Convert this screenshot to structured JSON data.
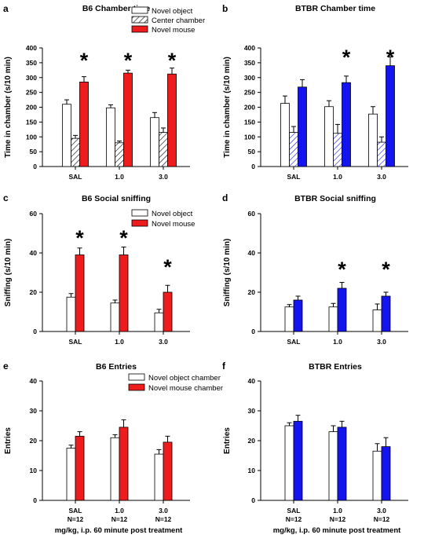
{
  "colors": {
    "novel_object": "#ffffff",
    "center_chamber": "hatched",
    "b6_novel": "#ee1c1c",
    "btbr_novel": "#1414f0",
    "outline": "#000000"
  },
  "chart_data": [
    {
      "panel_label": "a",
      "type": "bar",
      "title": "B6 Chamber time",
      "xlabel": "",
      "ylabel": "Time in chamber (s/10 min)",
      "ylim": [
        0,
        400
      ],
      "yticks": [
        0,
        50,
        100,
        150,
        200,
        250,
        300,
        350,
        400
      ],
      "categories": [
        "SAL",
        "1.0",
        "3.0"
      ],
      "legend": [
        "Novel object",
        "Center chamber",
        "Novel mouse"
      ],
      "series": [
        {
          "name": "Novel object",
          "fill": "white",
          "values": [
            210,
            198,
            165
          ],
          "errors": [
            15,
            10,
            17
          ]
        },
        {
          "name": "Center chamber",
          "fill": "hatch",
          "values": [
            95,
            80,
            115
          ],
          "errors": [
            10,
            6,
            15
          ]
        },
        {
          "name": "Novel mouse",
          "fill": "red",
          "values": [
            285,
            315,
            312
          ],
          "errors": [
            18,
            10,
            20
          ]
        }
      ],
      "stars": [
        "*",
        "*",
        "*"
      ],
      "sublabels": [],
      "caption": ""
    },
    {
      "panel_label": "b",
      "type": "bar",
      "title": "BTBR Chamber time",
      "xlabel": "",
      "ylabel": "Time in chamber (s/10 min)",
      "ylim": [
        0,
        400
      ],
      "yticks": [
        0,
        50,
        100,
        150,
        200,
        250,
        300,
        350,
        400
      ],
      "categories": [
        "SAL",
        "1.0",
        "3.0"
      ],
      "legend": [],
      "series": [
        {
          "name": "Novel object",
          "fill": "white",
          "values": [
            213,
            202,
            177
          ],
          "errors": [
            25,
            20,
            25
          ]
        },
        {
          "name": "Center chamber",
          "fill": "hatch-blue",
          "values": [
            115,
            112,
            82
          ],
          "errors": [
            20,
            30,
            18
          ]
        },
        {
          "name": "Novel mouse",
          "fill": "blue",
          "values": [
            268,
            283,
            340
          ],
          "errors": [
            25,
            22,
            30
          ]
        }
      ],
      "stars": [
        "",
        "*",
        "*"
      ],
      "sublabels": [],
      "caption": ""
    },
    {
      "panel_label": "c",
      "type": "bar",
      "title": "B6 Social sniffing",
      "xlabel": "",
      "ylabel": "Sniffing (s/10 min)",
      "ylim": [
        0,
        60
      ],
      "yticks": [
        0,
        20,
        40,
        60
      ],
      "categories": [
        "SAL",
        "1.0",
        "3.0"
      ],
      "legend": [
        "Novel object",
        "Novel mouse"
      ],
      "series": [
        {
          "name": "Novel object",
          "fill": "white",
          "values": [
            17.5,
            14.5,
            9.5
          ],
          "errors": [
            1.8,
            1.5,
            1.8
          ]
        },
        {
          "name": "Novel mouse",
          "fill": "red",
          "values": [
            39,
            39,
            20
          ],
          "errors": [
            3.5,
            4,
            3.5
          ]
        }
      ],
      "stars": [
        "*",
        "*",
        "*"
      ],
      "sublabels": [],
      "caption": ""
    },
    {
      "panel_label": "d",
      "type": "bar",
      "title": "BTBR Social sniffing",
      "xlabel": "",
      "ylabel": "Sniffing (s/10 min)",
      "ylim": [
        0,
        60
      ],
      "yticks": [
        0,
        20,
        40,
        60
      ],
      "categories": [
        "SAL",
        "1.0",
        "3.0"
      ],
      "legend": [],
      "series": [
        {
          "name": "Novel object",
          "fill": "white",
          "values": [
            12.5,
            12.5,
            11
          ],
          "errors": [
            1.2,
            1.8,
            3
          ]
        },
        {
          "name": "Novel mouse",
          "fill": "blue",
          "values": [
            16,
            22,
            18
          ],
          "errors": [
            2,
            3,
            2
          ]
        }
      ],
      "stars": [
        "",
        "*",
        "*"
      ],
      "sublabels": [],
      "caption": ""
    },
    {
      "panel_label": "e",
      "type": "bar",
      "title": "B6 Entries",
      "xlabel": "",
      "ylabel": "Entries",
      "ylim": [
        0,
        40
      ],
      "yticks": [
        0,
        10,
        20,
        30,
        40
      ],
      "categories": [
        "SAL",
        "1.0",
        "3.0"
      ],
      "legend": [
        "Novel object chamber",
        "Novel mouse chamber"
      ],
      "series": [
        {
          "name": "Novel object chamber",
          "fill": "white",
          "values": [
            17.5,
            21,
            15.5
          ],
          "errors": [
            1,
            1,
            1.5
          ]
        },
        {
          "name": "Novel mouse chamber",
          "fill": "red",
          "values": [
            21.5,
            24.5,
            19.5
          ],
          "errors": [
            1.5,
            2.5,
            2
          ]
        }
      ],
      "stars": [
        "",
        "",
        ""
      ],
      "sublabels": [
        "N=12",
        "N=12",
        "N=12"
      ],
      "caption": "mg/kg, i.p. 60 minute post treatment"
    },
    {
      "panel_label": "f",
      "type": "bar",
      "title": "BTBR Entries",
      "xlabel": "",
      "ylabel": "Entries",
      "ylim": [
        0,
        40
      ],
      "yticks": [
        0,
        10,
        20,
        30,
        40
      ],
      "categories": [
        "SAL",
        "1.0",
        "3.0"
      ],
      "legend": [],
      "series": [
        {
          "name": "Novel object chamber",
          "fill": "white",
          "values": [
            25,
            23,
            16.5
          ],
          "errors": [
            1,
            2,
            2.5
          ]
        },
        {
          "name": "Novel mouse chamber",
          "fill": "blue",
          "values": [
            26.5,
            24.5,
            18
          ],
          "errors": [
            2,
            2,
            3
          ]
        }
      ],
      "stars": [
        "",
        "",
        ""
      ],
      "sublabels": [
        "N=12",
        "N=12",
        "N=12"
      ],
      "caption": "mg/kg, i.p. 60 minute post treatment"
    }
  ]
}
